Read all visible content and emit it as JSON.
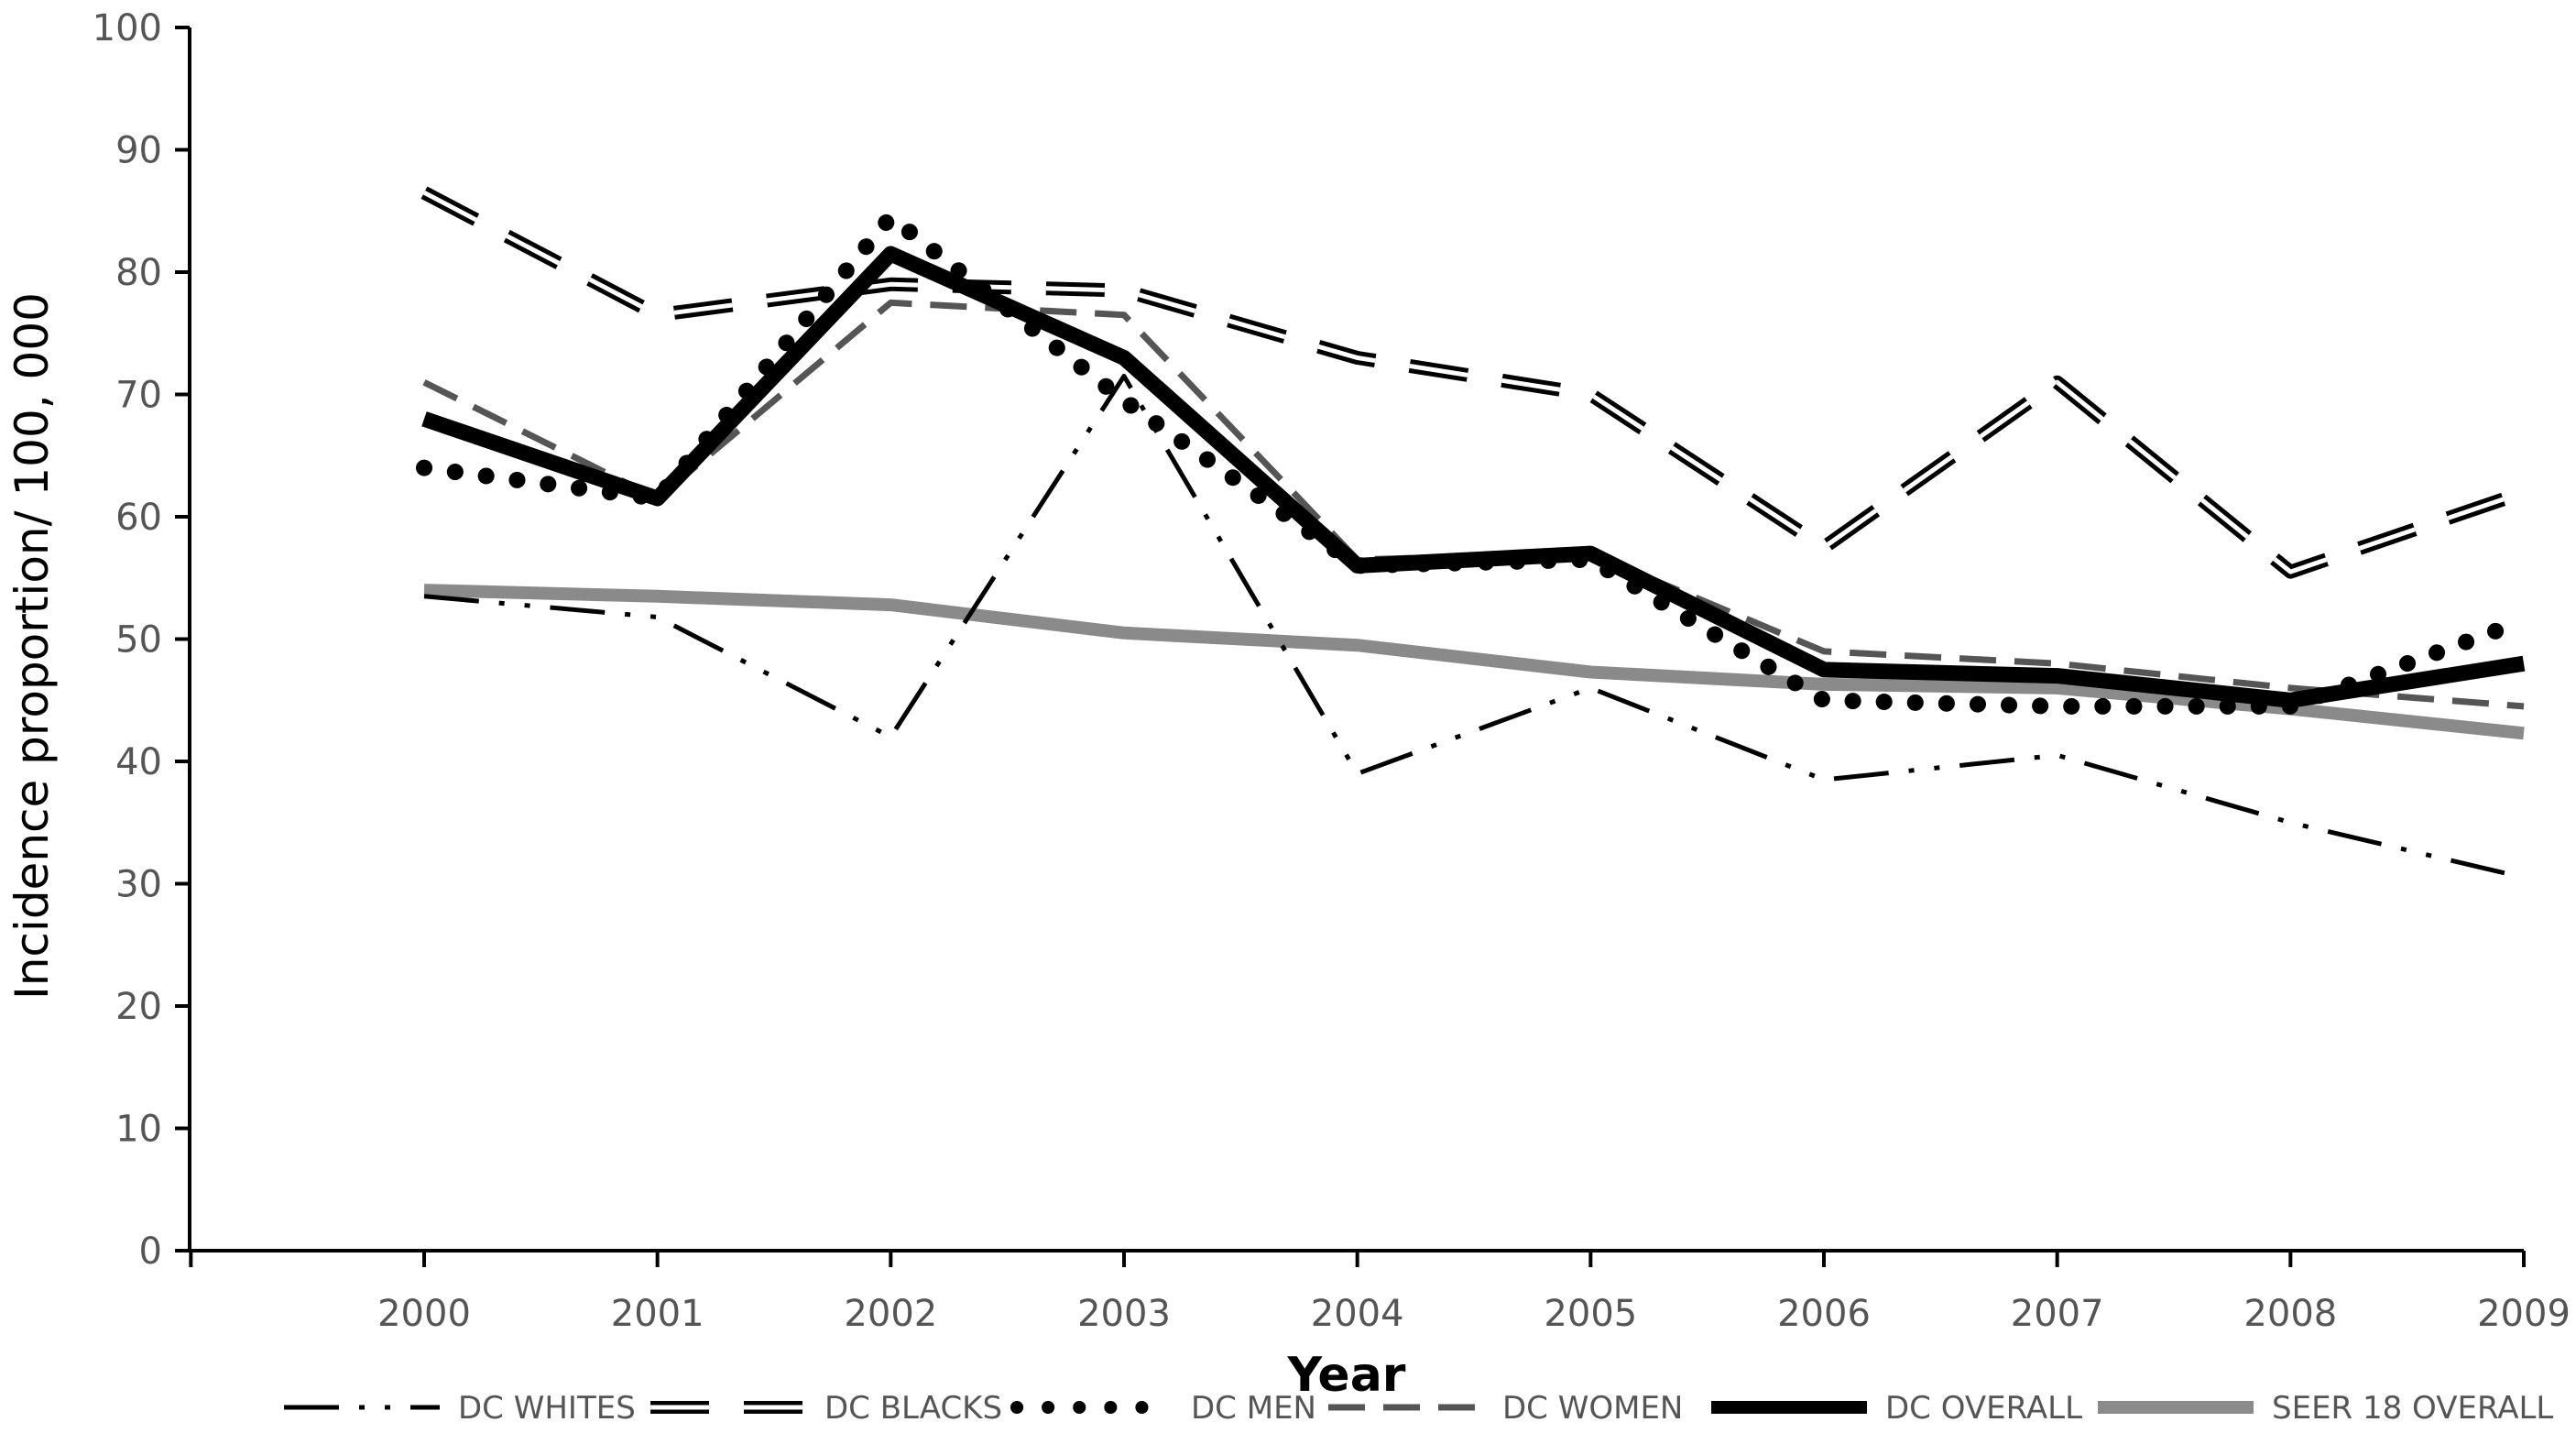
{
  "chart_data": {
    "type": "line",
    "title": "",
    "xlabel": "Year",
    "ylabel": "Incidence proportion/ 100, 000",
    "ylim": [
      0,
      100
    ],
    "yticks": [
      0,
      10,
      20,
      30,
      40,
      50,
      60,
      70,
      80,
      90,
      100
    ],
    "categories": [
      "2000",
      "2001",
      "2002",
      "2003",
      "2004",
      "2005",
      "2006",
      "2007",
      "2008",
      "2009"
    ],
    "grid": false,
    "legend_position": "bottom",
    "series": [
      {
        "name": "DC WHITES",
        "style": "dash-dot-dot",
        "color": "#000000",
        "values": [
          53.5,
          51.8,
          42.0,
          71.5,
          39.0,
          46.0,
          38.5,
          40.5,
          35.0,
          30.5
        ]
      },
      {
        "name": "DC BLACKS",
        "style": "double-dash",
        "color": "#000000",
        "values": [
          86.5,
          76.5,
          79.0,
          78.5,
          73.0,
          70.0,
          57.5,
          71.0,
          55.5,
          62.0
        ]
      },
      {
        "name": "DC MEN",
        "style": "dotted",
        "color": "#000000",
        "values": [
          64.0,
          61.5,
          84.5,
          69.5,
          56.0,
          56.5,
          45.0,
          44.5,
          44.5,
          51.5
        ]
      },
      {
        "name": "DC WOMEN",
        "style": "dashed",
        "color": "#555555",
        "values": [
          71.0,
          61.5,
          77.5,
          76.5,
          56.5,
          57.0,
          49.0,
          48.0,
          46.0,
          44.5
        ]
      },
      {
        "name": "DC OVERALL",
        "style": "solid-thick",
        "color": "#000000",
        "values": [
          68.0,
          61.5,
          81.5,
          73.0,
          56.0,
          57.0,
          47.5,
          47.0,
          45.0,
          48.0
        ]
      },
      {
        "name": "SEER 18  OVERALL",
        "style": "solid-gray",
        "color": "#8a8a8a",
        "values": [
          54.0,
          53.5,
          52.8,
          50.5,
          49.5,
          47.3,
          46.3,
          46.0,
          44.3,
          42.3
        ]
      }
    ]
  }
}
